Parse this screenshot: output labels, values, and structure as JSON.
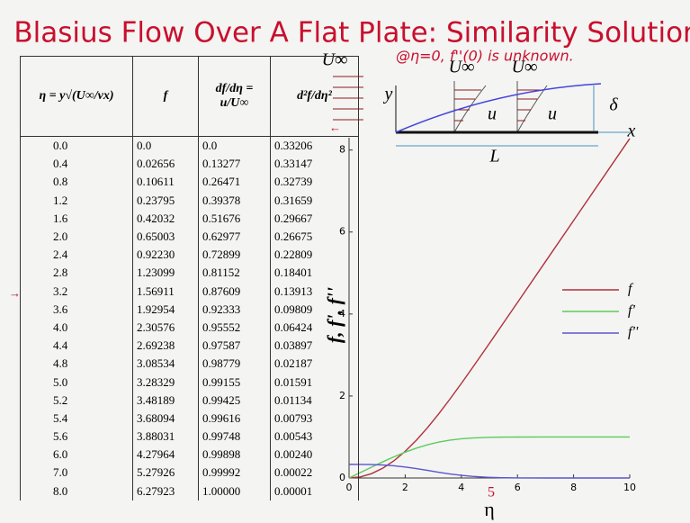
{
  "header": {
    "title": "Blasius Flow Over A Flat Plate: Similarity Solution"
  },
  "table": {
    "header": [
      "η = y√(U∞/νx)",
      "f",
      "df/dη = u/U∞",
      "d²f/dη²"
    ],
    "rows": [
      [
        "0.0",
        "0.0",
        "0.0",
        "0.33206"
      ],
      [
        "0.4",
        "0.02656",
        "0.13277",
        "0.33147"
      ],
      [
        "0.8",
        "0.10611",
        "0.26471",
        "0.32739"
      ],
      [
        "1.2",
        "0.23795",
        "0.39378",
        "0.31659"
      ],
      [
        "1.6",
        "0.42032",
        "0.51676",
        "0.29667"
      ],
      [
        "2.0",
        "0.65003",
        "0.62977",
        "0.26675"
      ],
      [
        "2.4",
        "0.92230",
        "0.72899",
        "0.22809"
      ],
      [
        "2.8",
        "1.23099",
        "0.81152",
        "0.18401"
      ],
      [
        "3.2",
        "1.56911",
        "0.87609",
        "0.13913"
      ],
      [
        "3.6",
        "1.92954",
        "0.92333",
        "0.09809"
      ],
      [
        "4.0",
        "2.30576",
        "0.95552",
        "0.06424"
      ],
      [
        "4.4",
        "2.69238",
        "0.97587",
        "0.03897"
      ],
      [
        "4.8",
        "3.08534",
        "0.98779",
        "0.02187"
      ],
      [
        "5.0",
        "3.28329",
        "0.99155",
        "0.01591"
      ],
      [
        "5.2",
        "3.48189",
        "0.99425",
        "0.01134"
      ],
      [
        "5.4",
        "3.68094",
        "0.99616",
        "0.00793"
      ],
      [
        "5.6",
        "3.88031",
        "0.99748",
        "0.00543"
      ],
      [
        "6.0",
        "4.27964",
        "0.99898",
        "0.00240"
      ],
      [
        "7.0",
        "5.27926",
        "0.99992",
        "0.00022"
      ],
      [
        "8.0",
        "6.27923",
        "1.00000",
        "0.00001"
      ]
    ]
  },
  "schematic": {
    "labels": [
      "U∞",
      "U∞",
      "U∞",
      "y",
      "u",
      "u",
      "δ",
      "x",
      "L"
    ]
  },
  "annotations": [
    "@η=0, f''(0) is unknown.",
    "5"
  ],
  "chart_data": {
    "type": "line",
    "xlabel": "η",
    "ylabel": "f, f', f''",
    "x": [
      0,
      0.4,
      0.8,
      1.2,
      1.6,
      2.0,
      2.4,
      2.8,
      3.2,
      3.6,
      4.0,
      4.4,
      4.8,
      5.0,
      5.2,
      5.4,
      5.6,
      6.0,
      7.0,
      8.0,
      10
    ],
    "series": [
      {
        "name": "f",
        "color": "#b0303a",
        "values": [
          0,
          0.02656,
          0.10611,
          0.23795,
          0.42032,
          0.65003,
          0.9223,
          1.23099,
          1.56911,
          1.92954,
          2.30576,
          2.69238,
          3.08534,
          3.28329,
          3.48189,
          3.68094,
          3.88031,
          4.27964,
          5.27926,
          6.27923,
          8.27923
        ]
      },
      {
        "name": "f'",
        "color": "#5ccc5c",
        "values": [
          0,
          0.13277,
          0.26471,
          0.39378,
          0.51676,
          0.62977,
          0.72899,
          0.81152,
          0.87609,
          0.92333,
          0.95552,
          0.97587,
          0.98779,
          0.99155,
          0.99425,
          0.99616,
          0.99748,
          0.99898,
          0.99992,
          1.0,
          1.0
        ]
      },
      {
        "name": "f''",
        "color": "#5a55d0",
        "values": [
          0.33206,
          0.33147,
          0.32739,
          0.31659,
          0.29667,
          0.26675,
          0.22809,
          0.18401,
          0.13913,
          0.09809,
          0.06424,
          0.03897,
          0.02187,
          0.01591,
          0.01134,
          0.00793,
          0.00543,
          0.0024,
          0.00022,
          1e-05,
          0
        ]
      }
    ],
    "xlim": [
      0,
      10
    ],
    "ylim": [
      0,
      8.3
    ],
    "xticks": [
      0,
      2,
      4,
      6,
      8,
      10
    ],
    "yticks": [
      0,
      2,
      4,
      6,
      8
    ]
  }
}
